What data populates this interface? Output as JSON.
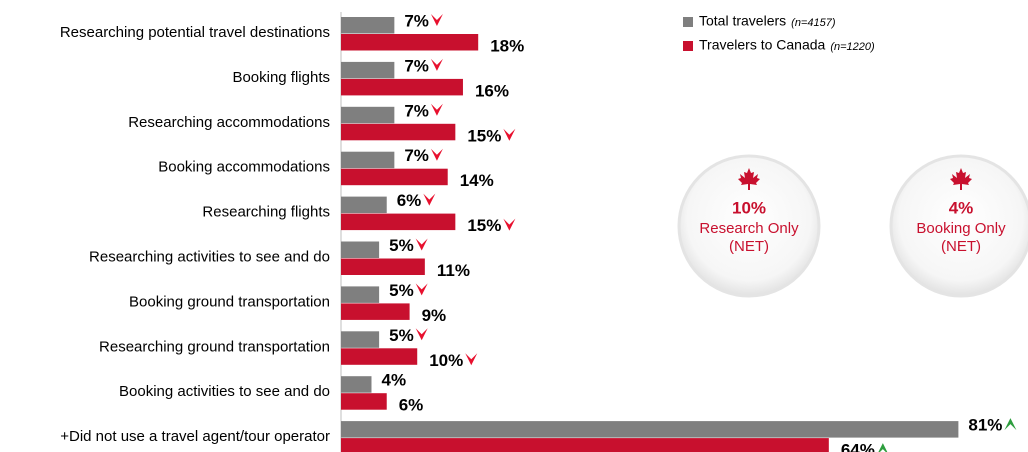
{
  "chart_data": {
    "type": "hbar",
    "categories": [
      "Researching potential travel destinations",
      "Booking flights",
      "Researching accommodations",
      "Booking accommodations",
      "Researching flights",
      "Researching activities to see and do",
      "Booking ground transportation",
      "Researching ground transportation",
      "Booking activities to see and do",
      "+Did not use a travel agent/tour operator"
    ],
    "series": [
      {
        "name": "Total travelers",
        "n_label": "(n=4157)",
        "color": "#7f7f7f",
        "values": [
          7,
          7,
          7,
          7,
          6,
          5,
          5,
          5,
          4,
          81
        ],
        "value_labels": [
          "7%",
          "7%",
          "7%",
          "7%",
          "6%",
          "5%",
          "5%",
          "5%",
          "4%",
          "81%"
        ],
        "markers": [
          "down",
          "down",
          "down",
          "down",
          "down",
          "down",
          "down",
          "down",
          null,
          "up"
        ]
      },
      {
        "name": "Travelers to Canada",
        "n_label": "(n=1220)",
        "color": "#c8102e",
        "values": [
          18,
          16,
          15,
          14,
          15,
          11,
          9,
          10,
          6,
          64
        ],
        "value_labels": [
          "18%",
          "16%",
          "15%",
          "14%",
          "15%",
          "11%",
          "9%",
          "10%",
          "6%",
          "64%"
        ],
        "markers": [
          null,
          null,
          "down",
          null,
          "down",
          null,
          null,
          "down",
          null,
          "up"
        ]
      }
    ],
    "xlim": [
      0,
      90
    ],
    "marker_colors": {
      "down": "#e8102e",
      "up": "#2e9e3e"
    },
    "callouts": [
      {
        "value": 10,
        "value_label": "10%",
        "lines": [
          "Research Only",
          "(NET)"
        ]
      },
      {
        "value": 4,
        "value_label": "4%",
        "lines": [
          "Booking Only",
          "(NET)"
        ]
      }
    ],
    "callout_color": "#c8102e"
  }
}
